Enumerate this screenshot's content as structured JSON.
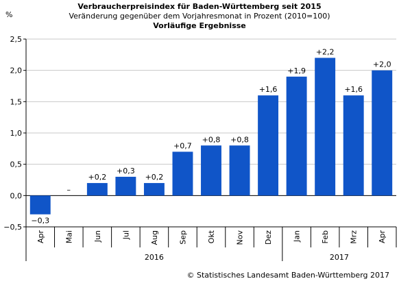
{
  "chart_data": {
    "type": "bar",
    "title": "Verbraucherpreisindex für Baden-Württemberg seit 2015",
    "subtitle": "Veränderung gegenüber dem Vorjahresmonat in Prozent (2010=100)",
    "subtitle2": "Vorläufige Ergebnisse",
    "ylabel": "%",
    "ylim": [
      -0.5,
      2.5
    ],
    "yticks": [
      "−0,5",
      "0,0",
      "0,5",
      "1,0",
      "1,5",
      "2,0",
      "2,5"
    ],
    "ytick_values": [
      -0.5,
      0,
      0.5,
      1.0,
      1.5,
      2.0,
      2.5
    ],
    "categories": [
      "Apr",
      "Mai",
      "Jun",
      "Jul",
      "Aug",
      "Sep",
      "Okt",
      "Nov",
      "Dez",
      "Jan",
      "Feb",
      "Mrz",
      "Apr"
    ],
    "values": [
      -0.3,
      0,
      0.2,
      0.3,
      0.2,
      0.7,
      0.8,
      0.8,
      1.6,
      1.9,
      2.2,
      1.6,
      2.0
    ],
    "data_labels": [
      "−0,3",
      "–",
      "+0,2",
      "+0,3",
      "+0,2",
      "+0,7",
      "+0,8",
      "+0,8",
      "+1,6",
      "+1,9",
      "+2,2",
      "+1,6",
      "+2,0"
    ],
    "groups": [
      {
        "label": "2016",
        "count": 9
      },
      {
        "label": "2017",
        "count": 4
      }
    ],
    "grid": true,
    "colors": {
      "bar": "#1055c8",
      "grid": "#c8c8c8",
      "axis": "#000000"
    }
  },
  "footer": {
    "copyright": "© Statistisches Landesamt Baden-Württemberg 2017"
  }
}
